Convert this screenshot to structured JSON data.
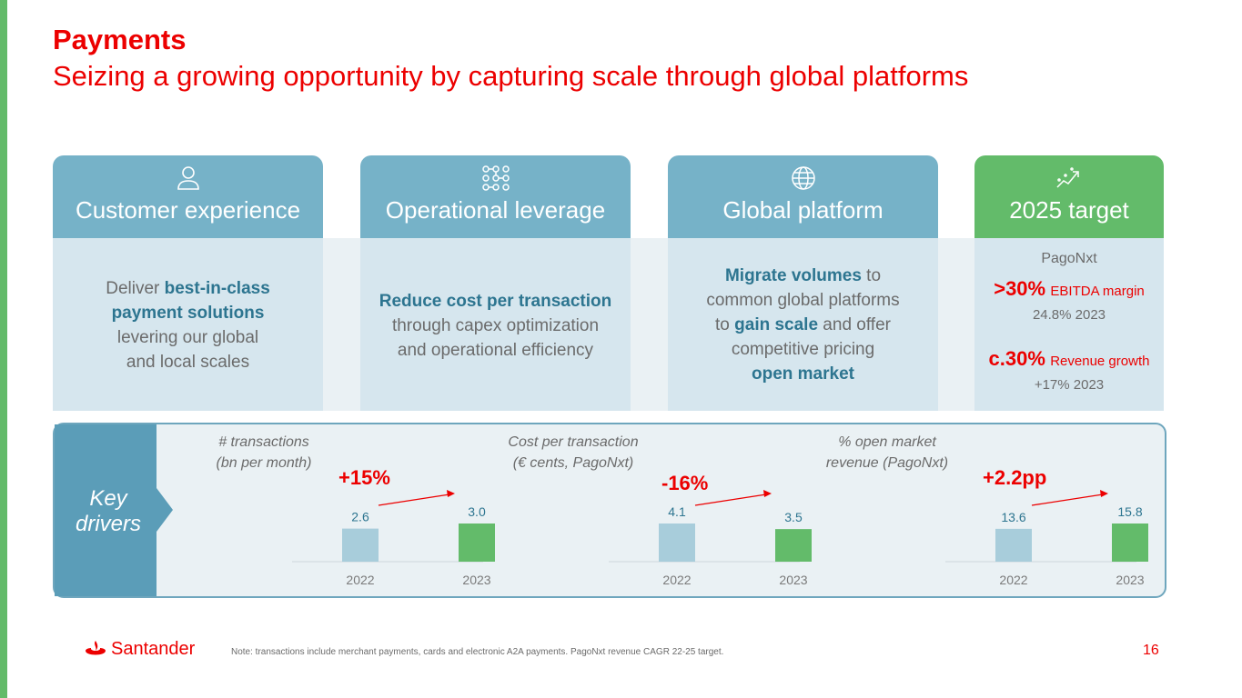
{
  "header": {
    "title": "Payments",
    "subtitle": "Seizing a growing opportunity by capturing scale through global platforms"
  },
  "pillars": [
    {
      "icon": "person-icon",
      "label": "Customer experience",
      "lines": [
        [
          "Deliver ",
          {
            "b": "best-in-class"
          }
        ],
        [
          {
            "b": "payment solutions"
          }
        ],
        [
          "levering our global"
        ],
        [
          "and local scales"
        ]
      ]
    },
    {
      "icon": "network-icon",
      "label": "Operational leverage",
      "lines": [
        [
          {
            "b": "Reduce cost per transaction"
          }
        ],
        [
          "through capex optimization"
        ],
        [
          "and operational efficiency"
        ]
      ]
    },
    {
      "icon": "globe-icon",
      "label": "Global platform",
      "lines": [
        [
          {
            "b": "Migrate volumes"
          },
          " to"
        ],
        [
          "common global platforms"
        ],
        [
          "to ",
          {
            "b": "gain scale"
          },
          " and offer"
        ],
        [
          "competitive pricing"
        ],
        [
          {
            "b": "open market"
          }
        ]
      ]
    }
  ],
  "target": {
    "icon": "growth-chart-icon",
    "label": "2025 target",
    "entity": "PagoNxt",
    "items": [
      {
        "value": ">30%",
        "metric": "EBITDA margin",
        "actual": "24.8% 2023"
      },
      {
        "value": "c.30%",
        "metric": "Revenue growth",
        "actual": "+17% 2023"
      }
    ]
  },
  "drivers": {
    "label_line1": "Key",
    "label_line2": "drivers"
  },
  "chart_data": [
    {
      "type": "bar",
      "title": "# transactions (bn per month)",
      "title_lines": [
        "# transactions",
        "(bn per month)"
      ],
      "categories": [
        "2022",
        "2023"
      ],
      "values": [
        2.6,
        3.0
      ],
      "labels": [
        "2.6",
        "3.0"
      ],
      "change": "+15%",
      "colors": [
        "#a8cddb",
        "#63bb6a"
      ]
    },
    {
      "type": "bar",
      "title": "Cost per transaction (€ cents, PagoNxt)",
      "title_lines": [
        "Cost per transaction",
        "(€ cents, PagoNxt)"
      ],
      "categories": [
        "2022",
        "2023"
      ],
      "values": [
        4.1,
        3.5
      ],
      "labels": [
        "4.1",
        "3.5"
      ],
      "change": "-16%",
      "colors": [
        "#a8cddb",
        "#63bb6a"
      ]
    },
    {
      "type": "bar",
      "title": "% open market revenue (PagoNxt)",
      "title_lines": [
        "% open market",
        "revenue (PagoNxt)"
      ],
      "categories": [
        "2022",
        "2023"
      ],
      "values": [
        13.6,
        15.8
      ],
      "labels": [
        "13.6",
        "15.8"
      ],
      "change": "+2.2pp",
      "colors": [
        "#a8cddb",
        "#63bb6a"
      ]
    }
  ],
  "footer": {
    "brand": "Santander",
    "note": "Note: transactions include merchant payments, cards and electronic A2A payments. PagoNxt revenue CAGR 22-25 target.",
    "page": "16"
  },
  "colors": {
    "brand_red": "#ec0000",
    "teal_header": "#76b2c8",
    "green": "#63bb6a",
    "highlight_blue": "#2d7590"
  }
}
